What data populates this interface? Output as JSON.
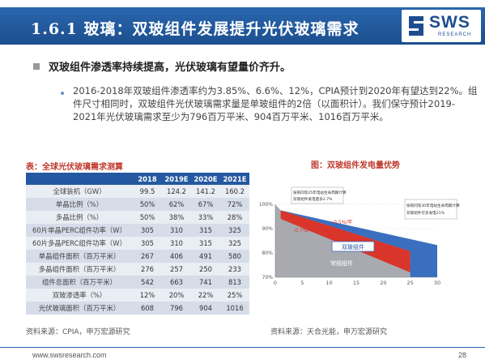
{
  "header": {
    "title": "1.6.1 玻璃：双玻组件发展提升光伏玻璃需求",
    "logo_text": "SWS",
    "logo_sub": "RESEARCH"
  },
  "headline": "双玻组件渗透率持续提高，光伏玻璃有望量价齐升。",
  "paragraph": "2016-2018年双玻组件渗透率约为3.85%、6.6%、12%，CPIA预计到2020年有望达到22%。组件尺寸相同时，双玻组件光伏玻璃需求量是单玻组件的2倍（以面积计）。我们保守预计2019-2021年光伏玻璃需求至少为796百万平米、904百万平米、1016百万平米。",
  "table": {
    "caption": "表：全球光伏玻璃需求测算",
    "headers": [
      "",
      "2018",
      "2019E",
      "2020E",
      "2021E"
    ],
    "rows": [
      [
        "全球装机（GW）",
        "99.5",
        "124.2",
        "141.2",
        "160.2"
      ],
      [
        "单晶比例（%）",
        "50%",
        "62%",
        "67%",
        "72%"
      ],
      [
        "多晶比例（%）",
        "50%",
        "38%",
        "33%",
        "28%"
      ],
      [
        "60片单晶PERC组件功率（W）",
        "305",
        "310",
        "315",
        "325"
      ],
      [
        "60片多晶PERC组件功率（W）",
        "305",
        "310",
        "315",
        "325"
      ],
      [
        "单晶组件面积（百万平米）",
        "267",
        "406",
        "491",
        "580"
      ],
      [
        "多晶组件面积（百万平米）",
        "276",
        "257",
        "250",
        "233"
      ],
      [
        "组件总面积（百万平米）",
        "542",
        "663",
        "741",
        "813"
      ],
      [
        "双玻渗透率（%）",
        "12%",
        "20%",
        "22%",
        "25%"
      ],
      [
        "光伏玻璃面积（百万平米）",
        "608",
        "796",
        "904",
        "1016"
      ]
    ],
    "source": "资料来源：CPIA，申万宏源研究"
  },
  "chart": {
    "caption": "图：双玻组件发电量优势",
    "source": "资料来源：天合光能，申万宏源研究"
  },
  "chart_data": {
    "type": "area",
    "title": "图：双玻组件发电量优势",
    "x_ticks": [
      0,
      5,
      10,
      15,
      20,
      25,
      30
    ],
    "y_ticks": [
      "100%",
      "90%",
      "80%",
      "70%"
    ],
    "xlim": [
      0,
      30
    ],
    "ylim": [
      70,
      100
    ],
    "series": [
      {
        "name": "双玻组件",
        "x": [
          0,
          1,
          30
        ],
        "y": [
          100,
          97.5,
          83.2
        ],
        "color": "#3a6fc0"
      },
      {
        "name": "常规组件",
        "x": [
          0,
          1,
          25
        ],
        "y": [
          100,
          97.5,
          80.7
        ],
        "color": "#d9352b"
      }
    ],
    "annotations": [
      "-0.7%/年",
      "-0.5%/年",
      "按照同等25年电站生命周期计算 双玻组件发电量多2.7%",
      "按照同等30年电站生命周期计算 双玻组件可多发电21%"
    ],
    "colors": {
      "grey_base": "#a8aab0",
      "blue": "#3a6fc0",
      "red": "#d9352b"
    }
  },
  "footer": {
    "url": "www.swsresearch.com",
    "page": "28"
  }
}
